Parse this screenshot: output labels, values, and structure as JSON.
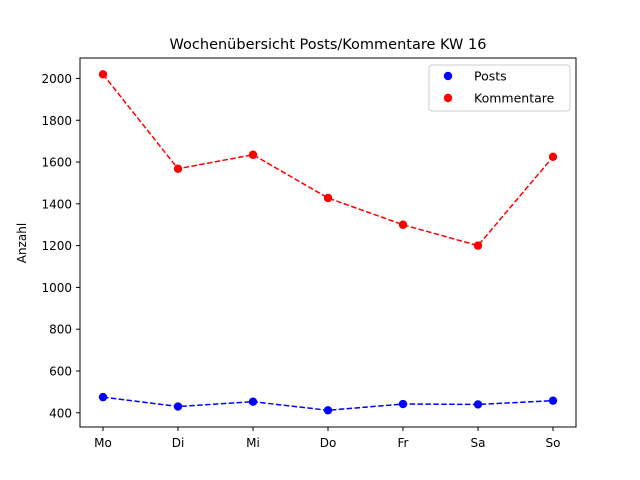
{
  "chart_data": {
    "type": "line",
    "title": "Wochenübersicht Posts/Kommentare KW 16",
    "xlabel": "",
    "ylabel": "Anzahl",
    "categories": [
      "Mo",
      "Di",
      "Mi",
      "Do",
      "Fr",
      "Sa",
      "So"
    ],
    "series": [
      {
        "name": "Posts",
        "color": "#0000ff",
        "line_style": "dashed",
        "marker": "circle",
        "values": [
          475,
          430,
          453,
          412,
          442,
          440,
          458
        ]
      },
      {
        "name": "Kommentare",
        "color": "#ff0000",
        "line_style": "dashed",
        "marker": "circle",
        "values": [
          2020,
          1568,
          1635,
          1428,
          1300,
          1200,
          1625
        ]
      }
    ],
    "ylim": [
      332,
      2098
    ],
    "yticks": [
      400,
      600,
      800,
      1000,
      1200,
      1400,
      1600,
      1800,
      2000
    ],
    "grid": false,
    "legend_position": "top-right"
  }
}
